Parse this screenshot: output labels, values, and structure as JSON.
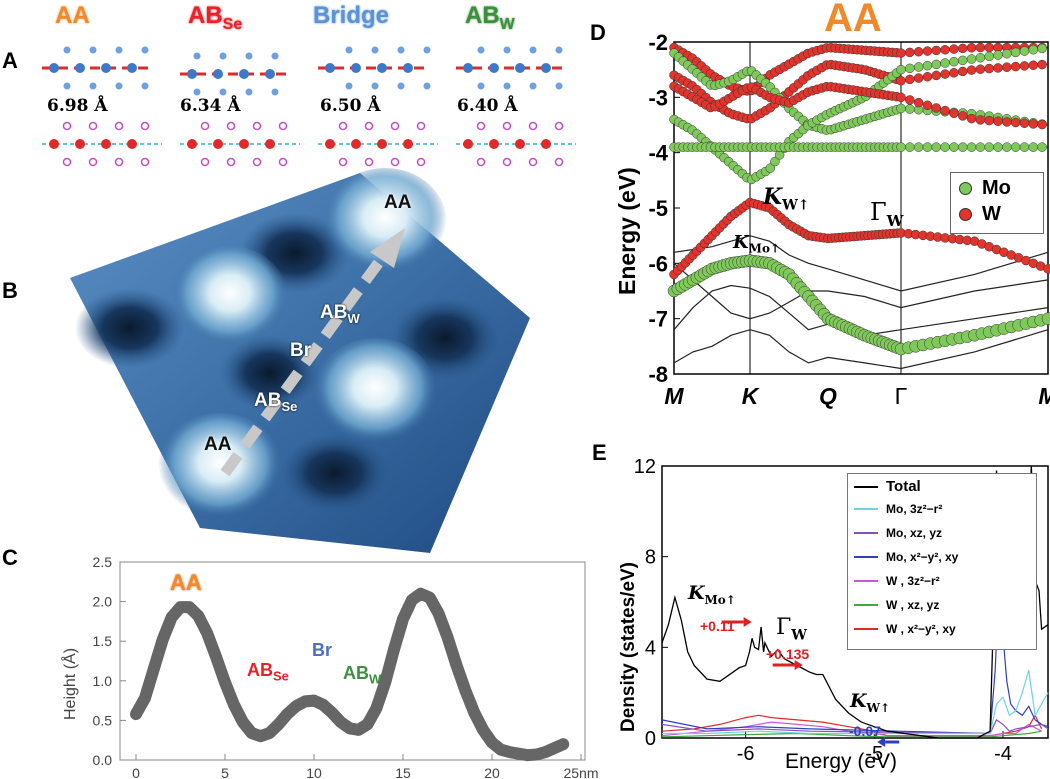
{
  "panels": {
    "a": "A",
    "b": "B",
    "c": "C",
    "d": "D",
    "e": "E"
  },
  "panelA": {
    "stackings": [
      {
        "main": "AA",
        "sub": "",
        "color": "#f0892a",
        "distance": "6.98 Å"
      },
      {
        "main": "AB",
        "sub": "Se",
        "color": "#e8212a",
        "distance": "6.34 Å"
      },
      {
        "main": "Bridge",
        "sub": "",
        "color": "#5b93d6",
        "distance": "6.50 Å"
      },
      {
        "main": "AB",
        "sub": "W",
        "color": "#3d8f3d",
        "distance": "6.40 Å"
      }
    ]
  },
  "panelB": {
    "labels": {
      "aa_top": "AA",
      "aa_bottom": "AA",
      "abw_main": "AB",
      "abw_sub": "W",
      "br": "Br",
      "abse_main": "AB",
      "abse_sub": "Se"
    }
  },
  "panelC": {
    "ylabel": "Height (Å)",
    "x_unit": "25nm",
    "annotations": {
      "aa": "AA",
      "abse_main": "AB",
      "abse_sub": "Se",
      "br": "Br",
      "abw_main": "AB",
      "abw_sub": "W"
    },
    "colors": {
      "line": "#666666",
      "aa": "#f0892a",
      "abse": "#e8212a",
      "br": "#4a6fc7",
      "abw": "#3d8f3d"
    }
  },
  "panelD": {
    "title": "AA",
    "title_color": "#f0892a",
    "ylabel": "Energy (eV)",
    "kpoints": [
      "M",
      "K",
      "Q",
      "Γ",
      "M"
    ],
    "legend": [
      {
        "name": "Mo",
        "color": "#7fc95a"
      },
      {
        "name": "W",
        "color": "#e0342c"
      }
    ],
    "annotations": {
      "kw_main": "K",
      "kw_sub": "W↑",
      "gw_main": "Γ",
      "gw_sub": "W",
      "kmo_main": "K",
      "kmo_sub": "Mo↑"
    }
  },
  "panelE": {
    "ylabel": "Density (states/eV)",
    "xlabel": "Energy (eV)",
    "legend": [
      "Total",
      "Mo, 3z²−r²",
      "Mo, xz, yz",
      "Mo, x²−y², xy",
      "W , 3z²−r²",
      "W , xz, yz",
      "W , x²−y², xy"
    ],
    "legend_colors": [
      "#000000",
      "#6fd3df",
      "#8a4fbf",
      "#2f3fbf",
      "#cc55dd",
      "#3fa83f",
      "#e02a2a"
    ],
    "annotations": {
      "kmo_main": "K",
      "kmo_sub": "Mo↑",
      "kmo_val": "+0.11",
      "gw_main": "Γ",
      "gw_sub": "W",
      "gw_val": "+0.135",
      "kw_main": "K",
      "kw_sub": "W↑",
      "kw_val": "-0.07"
    }
  },
  "chart_data": [
    {
      "type": "line",
      "panel": "C",
      "xlabel": "",
      "ylabel": "Height (Å)",
      "xlim": [
        0,
        25
      ],
      "ylim": [
        0,
        2.5
      ],
      "xticks": [
        0,
        5,
        10,
        15,
        20,
        25
      ],
      "xtick_labels": [
        "0",
        "5",
        "10",
        "15",
        "20",
        "25nm"
      ],
      "yticks": [
        0.0,
        0.5,
        1.0,
        1.5,
        2.0,
        2.5
      ],
      "series": [
        {
          "x": [
            0,
            0.5,
            1,
            1.5,
            2,
            2.5,
            3,
            3.5,
            4,
            4.5,
            5,
            5.5,
            6,
            6.5,
            7,
            7.5,
            8,
            8.5,
            9,
            9.5,
            10,
            10.5,
            11,
            11.5,
            12,
            12.5,
            13,
            13.5,
            14,
            14.5,
            15,
            15.5,
            16,
            16.5,
            17,
            17.5,
            18,
            18.5,
            19,
            19.5,
            20,
            20.5,
            21,
            21.5,
            22,
            22.5,
            23,
            23.5,
            24
          ],
          "values": [
            0.58,
            0.78,
            1.15,
            1.52,
            1.8,
            1.93,
            1.93,
            1.82,
            1.6,
            1.3,
            0.98,
            0.7,
            0.48,
            0.34,
            0.3,
            0.34,
            0.45,
            0.58,
            0.68,
            0.74,
            0.75,
            0.7,
            0.6,
            0.48,
            0.4,
            0.38,
            0.45,
            0.65,
            0.98,
            1.4,
            1.78,
            2.02,
            2.1,
            2.05,
            1.85,
            1.55,
            1.2,
            0.88,
            0.6,
            0.38,
            0.22,
            0.13,
            0.1,
            0.08,
            0.06,
            0.07,
            0.1,
            0.15,
            0.2
          ]
        }
      ]
    },
    {
      "type": "line",
      "panel": "D",
      "title": "AA",
      "ylabel": "Energy (eV)",
      "ylim": [
        -8,
        -2
      ],
      "yticks": [
        -8,
        -7,
        -6,
        -5,
        -4,
        -3,
        -2
      ],
      "categories": [
        "M",
        "K",
        "Q",
        "Γ",
        "M"
      ],
      "series": [
        {
          "name": "Mo",
          "x": [
            0,
            0.25,
            0.5,
            0.75,
            1,
            1.25,
            1.5,
            1.75,
            2,
            2.5,
            3,
            3.5,
            4
          ],
          "values": [
            -6.5,
            -6.3,
            -6.1,
            -6.0,
            -5.95,
            -6.0,
            -6.2,
            -6.6,
            -7.0,
            -7.3,
            -7.55,
            -7.3,
            -7.0
          ]
        },
        {
          "name": "W",
          "x": [
            0,
            0.25,
            0.5,
            0.75,
            1,
            1.25,
            1.5,
            1.75,
            2,
            2.5,
            3,
            3.5,
            4
          ],
          "values": [
            -6.2,
            -5.85,
            -5.5,
            -5.15,
            -4.9,
            -5.0,
            -5.3,
            -5.5,
            -5.55,
            -5.5,
            -5.45,
            -5.6,
            -6.1
          ]
        }
      ]
    },
    {
      "type": "line",
      "panel": "E",
      "xlabel": "Energy (eV)",
      "ylabel": "Density (states/eV)",
      "xlim": [
        -6.65,
        -3.65
      ],
      "ylim": [
        0,
        12
      ],
      "xticks": [
        -6,
        -5,
        -4
      ],
      "yticks": [
        0,
        4,
        8,
        12
      ],
      "series": [
        {
          "name": "Total",
          "x": [
            -6.65,
            -6.6,
            -6.55,
            -6.5,
            -6.45,
            -6.4,
            -6.3,
            -6.2,
            -6.1,
            -6.05,
            -6.0,
            -5.97,
            -5.95,
            -5.93,
            -5.9,
            -5.88,
            -5.86,
            -5.85,
            -5.8,
            -5.75,
            -5.7,
            -5.6,
            -5.5,
            -5.45,
            -5.4,
            -5.3,
            -5.2,
            -5.1,
            -5.0,
            -4.95,
            -4.9,
            -4.5,
            -4.3,
            -4.2,
            -4.1,
            -4.06,
            -4.05,
            -4.02,
            -4.0,
            -3.98,
            -3.96,
            -3.94,
            -3.9,
            -3.85,
            -3.8,
            -3.78,
            -3.76,
            -3.74,
            -3.72,
            -3.7,
            -3.65
          ],
          "values": [
            4.2,
            5.0,
            6.2,
            5.2,
            3.8,
            3.2,
            2.6,
            2.5,
            2.9,
            3.1,
            3.2,
            3.8,
            4.4,
            4.0,
            3.9,
            4.9,
            3.8,
            4.2,
            3.6,
            3.9,
            3.5,
            3.2,
            2.9,
            2.8,
            2.8,
            1.7,
            1.1,
            0.7,
            0.5,
            0.4,
            0.3,
            0.0,
            0.0,
            0.0,
            0.3,
            8.0,
            11.8,
            9.2,
            11.2,
            5.5,
            5.0,
            6.0,
            6.0,
            6.5,
            9.0,
            12.0,
            9.5,
            6.8,
            6.5,
            4.8,
            5.0
          ]
        },
        {
          "name": "Mo, 3z²−r²",
          "x": [
            -6.65,
            -6.3,
            -5.9,
            -5.5,
            -4.1,
            -4.05,
            -4.0,
            -3.95,
            -3.9,
            -3.85,
            -3.8,
            -3.75,
            -3.7,
            -3.65
          ],
          "values": [
            0.2,
            0.2,
            0.3,
            0.2,
            0.2,
            1.5,
            1.8,
            1.0,
            1.2,
            2.0,
            3.0,
            1.0,
            1.5,
            2.0
          ]
        },
        {
          "name": "Mo, xz, yz",
          "x": [
            -6.65,
            -6.3,
            -5.9,
            -5.5,
            -4.1,
            -4.05,
            -4.0,
            -3.95,
            -3.9,
            -3.8,
            -3.7,
            -3.65
          ],
          "values": [
            0.6,
            0.3,
            0.4,
            0.3,
            0.2,
            0.8,
            0.6,
            0.3,
            0.4,
            0.5,
            0.6,
            0.4
          ]
        },
        {
          "name": "Mo, x²−y², xy",
          "x": [
            -6.65,
            -6.3,
            -5.9,
            -5.5,
            -4.1,
            -4.06,
            -4.03,
            -4.0,
            -3.97,
            -3.94,
            -3.9,
            -3.85,
            -3.8,
            -3.75,
            -3.7,
            -3.65
          ],
          "values": [
            0.8,
            0.4,
            0.5,
            0.4,
            0.2,
            3.0,
            7.0,
            4.5,
            2.5,
            1.5,
            1.2,
            1.0,
            1.4,
            0.8,
            0.6,
            0.5
          ]
        },
        {
          "name": "W , 3z²−r²",
          "x": [
            -6.65,
            -6.3,
            -6.0,
            -5.8,
            -5.6,
            -5.4,
            -5.2,
            -5.0,
            -4.9,
            -4.1,
            -4.0,
            -3.9,
            -3.8,
            -3.7
          ],
          "values": [
            0.1,
            0.3,
            0.5,
            0.7,
            0.6,
            0.5,
            0.3,
            0.2,
            0.1,
            0.1,
            0.2,
            0.2,
            0.6,
            0.3
          ]
        },
        {
          "name": "W , xz, yz",
          "x": [
            -6.65,
            -6.3,
            -6.0,
            -5.6,
            -5.2,
            -4.9,
            -4.1,
            -4.0,
            -3.8,
            -3.7
          ],
          "values": [
            0.05,
            0.1,
            0.15,
            0.2,
            0.1,
            0.05,
            0.05,
            0.1,
            0.2,
            0.3
          ]
        },
        {
          "name": "W , x²−y², xy",
          "x": [
            -6.65,
            -6.4,
            -6.2,
            -6.0,
            -5.9,
            -5.8,
            -5.6,
            -5.4,
            -5.2,
            -5.0,
            -4.9,
            -4.1,
            -4.0,
            -3.9,
            -3.8,
            -3.75,
            -3.7
          ],
          "values": [
            0.3,
            0.4,
            0.6,
            0.9,
            1.0,
            0.9,
            0.8,
            0.7,
            0.5,
            0.3,
            0.1,
            0.1,
            0.2,
            0.3,
            0.5,
            1.0,
            0.4
          ]
        }
      ]
    }
  ]
}
